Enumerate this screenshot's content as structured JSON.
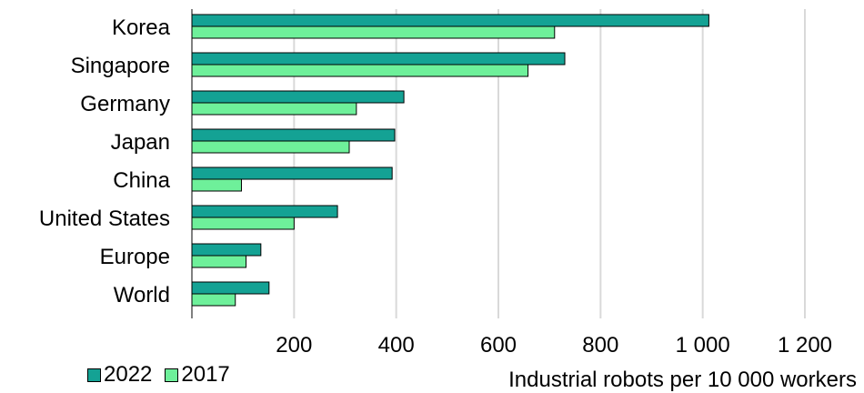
{
  "chart_data": {
    "type": "bar",
    "orientation": "horizontal",
    "categories": [
      "Korea",
      "Singapore",
      "Germany",
      "Japan",
      "China",
      "United States",
      "Europe",
      "World"
    ],
    "series": [
      {
        "name": "2022",
        "color": "#14a294",
        "values": [
          1012,
          730,
          415,
          397,
          392,
          285,
          135,
          151
        ]
      },
      {
        "name": "2017",
        "color": "#6ef09a",
        "values": [
          710,
          658,
          322,
          308,
          97,
          200,
          106,
          85
        ]
      }
    ],
    "xlim": [
      0,
      1200
    ],
    "xticks": [
      200,
      400,
      600,
      800,
      1000,
      1200
    ],
    "xtick_labels": [
      "200",
      "400",
      "600",
      "800",
      "1 000",
      "1 200"
    ],
    "grid": true,
    "legend_position": "bottom-left",
    "xlabel": "Industrial robots per 10 000 workers"
  }
}
